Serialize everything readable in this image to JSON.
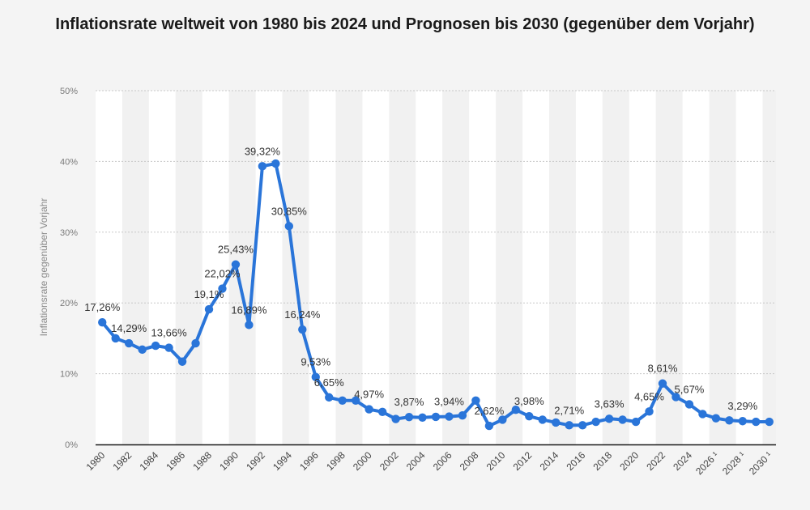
{
  "chart_data": {
    "type": "line",
    "title": "Inflationsrate weltweit von 1980 bis 2024 und Prognosen bis 2030 (gegenüber dem Vorjahr)",
    "ylabel": "Inflationsrate gegenüber Vorjahr",
    "xlabel": "",
    "ylim": [
      0,
      50
    ],
    "y_tick_labels": [
      "0%",
      "10%",
      "20%",
      "30%",
      "40%",
      "50%"
    ],
    "x_tick_labels": [
      "1980",
      "1982",
      "1984",
      "1986",
      "1988",
      "1990",
      "1992",
      "1994",
      "1996",
      "1998",
      "2000",
      "2002",
      "2004",
      "2006",
      "2008",
      "2010",
      "2012",
      "2014",
      "2016",
      "2018",
      "2020",
      "2022",
      "2024",
      "2026 ¹",
      "2028 ¹",
      "2030 ¹"
    ],
    "grid": true,
    "alternating_bands": true,
    "line_color": "#2a75d9",
    "series": [
      {
        "x": [
          1980,
          1981,
          1982,
          1983,
          1984,
          1985,
          1986,
          1987,
          1988,
          1989,
          1990,
          1991,
          1992,
          1993,
          1994,
          1995,
          1996,
          1997,
          1998,
          1999,
          2000,
          2001,
          2002,
          2003,
          2004,
          2005,
          2006,
          2007,
          2008,
          2009,
          2010,
          2011,
          2012,
          2013,
          2014,
          2015,
          2016,
          2017,
          2018,
          2019,
          2020,
          2021,
          2022,
          2023,
          2024,
          2025,
          2026,
          2027,
          2028,
          2029,
          2030
        ],
        "values": [
          17.26,
          15.0,
          14.29,
          13.4,
          13.95,
          13.66,
          11.7,
          14.3,
          19.1,
          22.02,
          25.43,
          16.89,
          39.32,
          39.7,
          30.85,
          16.24,
          9.53,
          6.65,
          6.2,
          6.2,
          4.97,
          4.6,
          3.6,
          3.87,
          3.8,
          3.9,
          3.94,
          4.1,
          6.2,
          2.62,
          3.5,
          4.9,
          3.98,
          3.5,
          3.1,
          2.71,
          2.71,
          3.2,
          3.63,
          3.5,
          3.2,
          4.65,
          8.61,
          6.7,
          5.67,
          4.3,
          3.7,
          3.4,
          3.29,
          3.2,
          3.2
        ]
      }
    ],
    "data_labels": [
      {
        "x": 1980,
        "text": "17,26%"
      },
      {
        "x": 1982,
        "text": "14,29%"
      },
      {
        "x": 1985,
        "text": "13,66%"
      },
      {
        "x": 1988,
        "text": "19,1%"
      },
      {
        "x": 1989,
        "text": "22,02%"
      },
      {
        "x": 1990,
        "text": "25,43%"
      },
      {
        "x": 1991,
        "text": "16,89%"
      },
      {
        "x": 1992,
        "text": "39,32%"
      },
      {
        "x": 1994,
        "text": "30,85%"
      },
      {
        "x": 1995,
        "text": "16,24%"
      },
      {
        "x": 1996,
        "text": "9,53%"
      },
      {
        "x": 1997,
        "text": "6,65%"
      },
      {
        "x": 2000,
        "text": "4,97%"
      },
      {
        "x": 2003,
        "text": "3,87%"
      },
      {
        "x": 2006,
        "text": "3,94%"
      },
      {
        "x": 2009,
        "text": "2,62%"
      },
      {
        "x": 2012,
        "text": "3,98%"
      },
      {
        "x": 2015,
        "text": "2,71%"
      },
      {
        "x": 2018,
        "text": "3,63%"
      },
      {
        "x": 2021,
        "text": "4,65%"
      },
      {
        "x": 2022,
        "text": "8,61%"
      },
      {
        "x": 2024,
        "text": "5,67%"
      },
      {
        "x": 2028,
        "text": "3,29%"
      }
    ]
  }
}
